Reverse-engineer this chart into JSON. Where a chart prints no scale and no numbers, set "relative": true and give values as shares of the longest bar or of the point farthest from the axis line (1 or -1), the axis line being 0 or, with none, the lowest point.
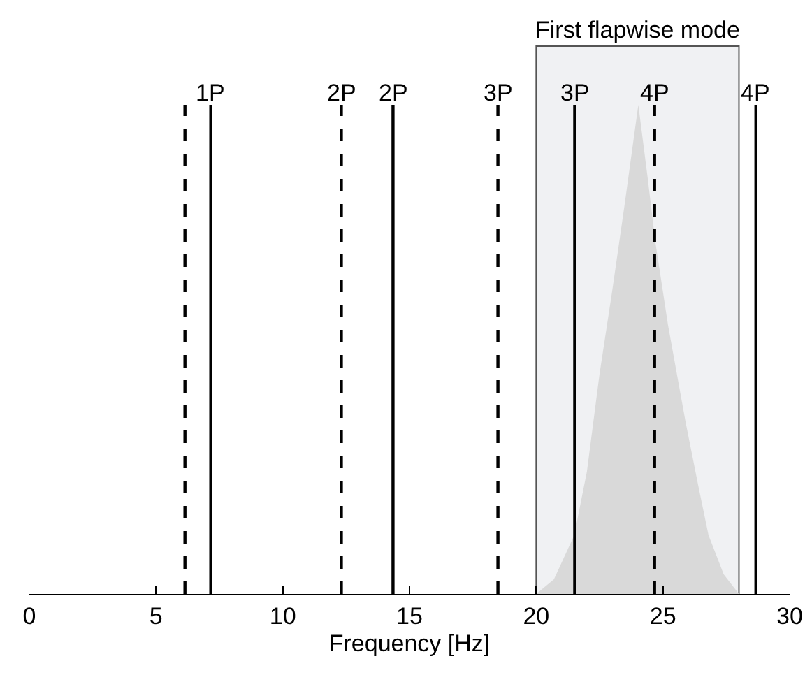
{
  "chart_data": {
    "type": "area",
    "xlabel": "Frequency [Hz]",
    "relative": true,
    "xlim": [
      0,
      30
    ],
    "xticks": [
      0,
      5,
      10,
      15,
      20,
      25,
      30
    ],
    "grid": false,
    "series": [
      {
        "color": "#d9d9d9",
        "x": [
          20,
          20.7,
          21.5,
          22,
          22.5,
          23,
          23.5,
          24.03,
          24.4,
          24.7,
          25.2,
          25.9,
          26.4,
          26.8,
          27.4,
          28
        ],
        "values": [
          0,
          0.03,
          0.12,
          0.25,
          0.45,
          0.62,
          0.8,
          1,
          0.85,
          0.72,
          0.55,
          0.35,
          0.22,
          0.12,
          0.04,
          0
        ]
      }
    ],
    "ref_lines": [
      {
        "axis": "x",
        "value": 6.14,
        "line_style": "dashed",
        "color": "#000000"
      },
      {
        "axis": "x",
        "value": 7.16,
        "label": "1P",
        "line_style": "solid",
        "color": "#000000"
      },
      {
        "axis": "x",
        "value": 12.31,
        "label": "2P",
        "line_style": "dashed",
        "color": "#000000"
      },
      {
        "axis": "x",
        "value": 14.35,
        "label": "2P",
        "line_style": "solid",
        "color": "#000000"
      },
      {
        "axis": "x",
        "value": 18.49,
        "label": "3P",
        "line_style": "dashed",
        "color": "#000000"
      },
      {
        "axis": "x",
        "value": 21.52,
        "label": "3P",
        "line_style": "solid",
        "color": "#000000"
      },
      {
        "axis": "x",
        "value": 24.67,
        "label": "4P",
        "line_style": "dashed",
        "color": "#000000"
      },
      {
        "axis": "x",
        "value": 28.67,
        "label": "4P",
        "line_style": "solid",
        "color": "#000000"
      }
    ],
    "bands": [
      {
        "axis": "x",
        "from": 20,
        "to": 28,
        "label": "First flapwise mode",
        "color": "#f0f1f3"
      }
    ]
  }
}
